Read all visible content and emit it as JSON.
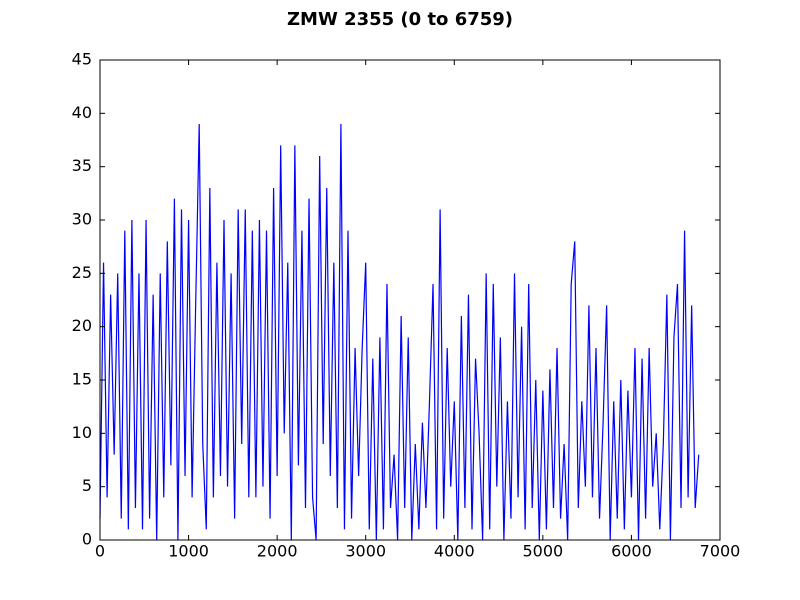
{
  "chart_data": {
    "type": "line",
    "title": "ZMW 2355 (0 to 6759)",
    "x": [
      0,
      40,
      80,
      120,
      160,
      200,
      240,
      280,
      320,
      360,
      400,
      440,
      480,
      520,
      560,
      600,
      640,
      680,
      720,
      760,
      800,
      840,
      880,
      920,
      960,
      1000,
      1040,
      1080,
      1120,
      1160,
      1200,
      1240,
      1280,
      1320,
      1360,
      1400,
      1440,
      1480,
      1520,
      1560,
      1600,
      1640,
      1680,
      1720,
      1760,
      1800,
      1840,
      1880,
      1920,
      1960,
      2000,
      2040,
      2080,
      2120,
      2160,
      2200,
      2240,
      2280,
      2320,
      2360,
      2400,
      2440,
      2480,
      2520,
      2560,
      2600,
      2640,
      2680,
      2720,
      2760,
      2800,
      2840,
      2880,
      2920,
      2960,
      3000,
      3040,
      3080,
      3120,
      3160,
      3200,
      3240,
      3280,
      3320,
      3360,
      3400,
      3440,
      3480,
      3520,
      3560,
      3600,
      3640,
      3680,
      3720,
      3760,
      3800,
      3840,
      3880,
      3920,
      3960,
      4000,
      4040,
      4080,
      4120,
      4160,
      4200,
      4240,
      4280,
      4320,
      4360,
      4400,
      4440,
      4480,
      4520,
      4560,
      4600,
      4640,
      4680,
      4720,
      4760,
      4800,
      4840,
      4880,
      4920,
      4960,
      5000,
      5040,
      5080,
      5120,
      5160,
      5200,
      5240,
      5280,
      5320,
      5360,
      5400,
      5440,
      5480,
      5520,
      5560,
      5600,
      5640,
      5680,
      5720,
      5760,
      5800,
      5840,
      5880,
      5920,
      5960,
      6000,
      6040,
      6080,
      6120,
      6160,
      6200,
      6240,
      6280,
      6320,
      6360,
      6400,
      6440,
      6480,
      6520,
      6560,
      6600,
      6640,
      6680,
      6720,
      6760
    ],
    "series": [
      {
        "color": "#0000ff",
        "values": [
          2,
          26,
          4,
          23,
          8,
          25,
          2,
          29,
          1,
          30,
          3,
          25,
          1,
          30,
          2,
          23,
          0,
          25,
          4,
          28,
          7,
          32,
          0,
          31,
          6,
          30,
          4,
          22,
          39,
          9,
          1,
          33,
          4,
          26,
          6,
          30,
          5,
          25,
          2,
          31,
          9,
          31,
          4,
          29,
          4,
          30,
          5,
          29,
          2,
          33,
          6,
          37,
          10,
          26,
          0,
          37,
          7,
          29,
          3,
          32,
          4,
          0,
          36,
          9,
          33,
          6,
          26,
          3,
          39,
          1,
          29,
          2,
          18,
          6,
          18,
          26,
          1,
          17,
          0,
          19,
          1,
          24,
          3,
          8,
          0,
          21,
          3,
          19,
          0,
          9,
          1,
          11,
          3,
          13,
          24,
          1,
          31,
          2,
          18,
          5,
          13,
          0,
          21,
          3,
          23,
          1,
          17,
          10,
          0,
          25,
          1,
          24,
          5,
          19,
          0,
          13,
          2,
          25,
          4,
          20,
          1,
          24,
          3,
          15,
          0,
          14,
          1,
          16,
          3,
          18,
          2,
          9,
          0,
          24,
          28,
          3,
          13,
          5,
          22,
          4,
          18,
          2,
          11,
          22,
          0,
          13,
          2,
          15,
          1,
          14,
          4,
          18,
          0,
          17,
          2,
          18,
          5,
          10,
          1,
          9,
          23,
          0,
          19,
          24,
          3,
          29,
          4,
          22,
          3,
          8
        ]
      }
    ],
    "xlim": [
      0,
      7000
    ],
    "xticks": [
      0,
      1000,
      2000,
      3000,
      4000,
      5000,
      6000,
      7000
    ],
    "ylim": [
      0,
      45
    ],
    "yticks": [
      0,
      5,
      10,
      15,
      20,
      25,
      30,
      35,
      40,
      45
    ],
    "grid": false
  }
}
